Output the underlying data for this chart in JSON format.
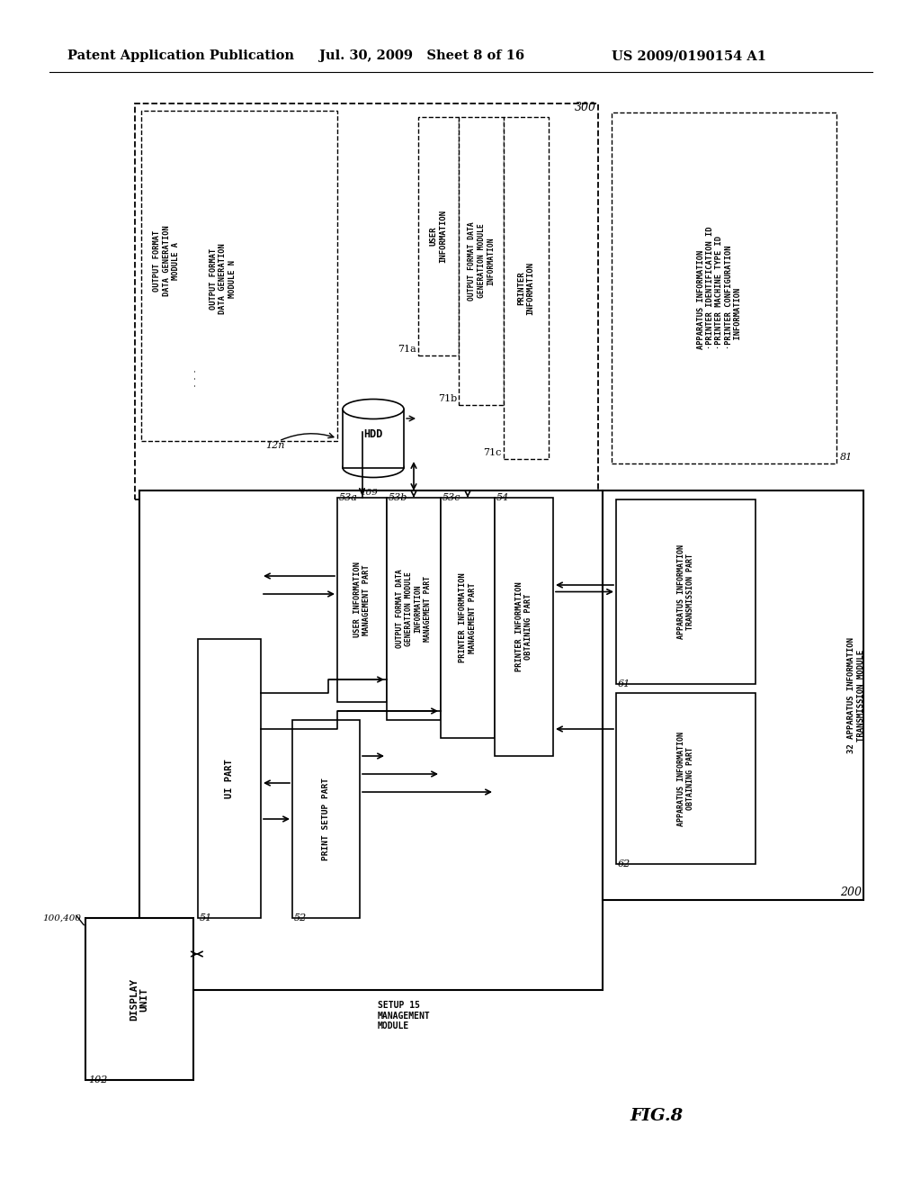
{
  "title_left": "Patent Application Publication",
  "title_center": "Jul. 30, 2009   Sheet 8 of 16",
  "title_right": "US 2009/0190154 A1",
  "fig_label": "FIG.8",
  "background": "#ffffff"
}
